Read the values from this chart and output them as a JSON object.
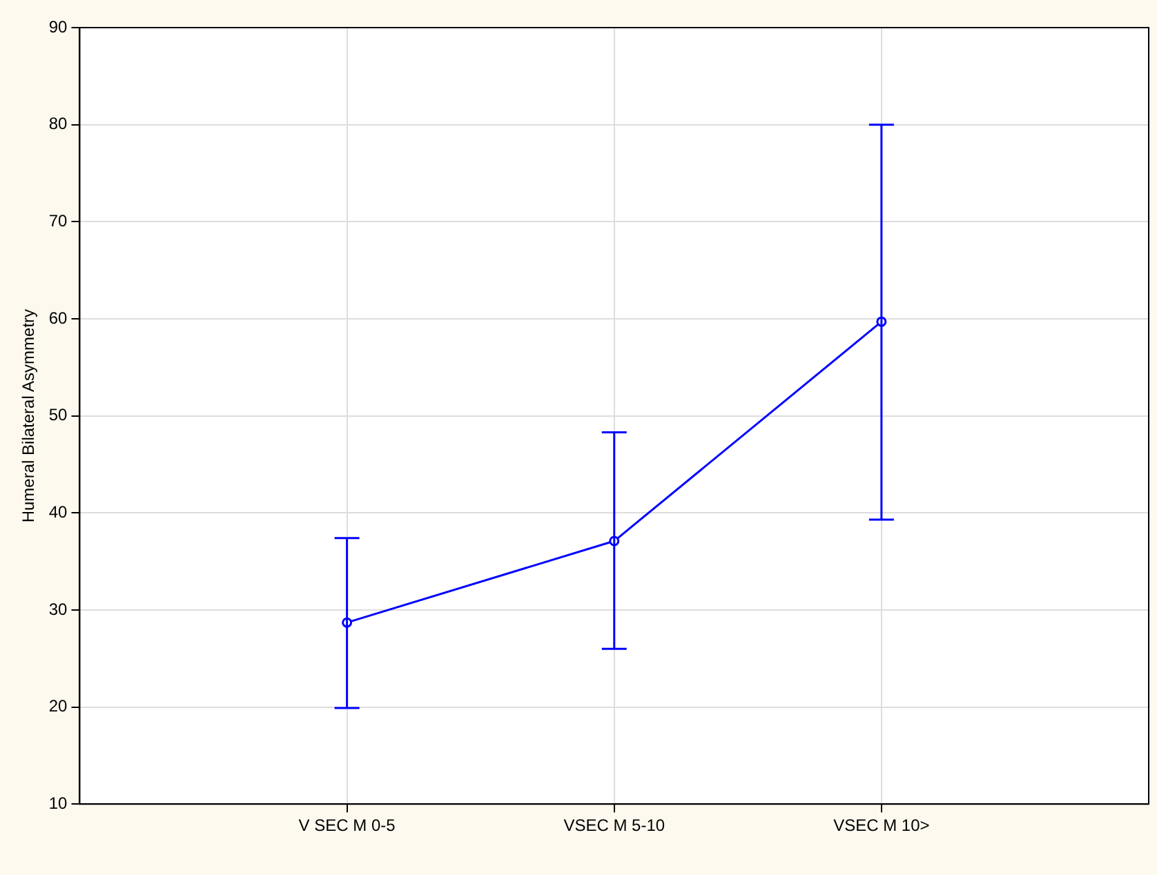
{
  "chart_data": {
    "type": "line",
    "ylabel": "Humeral Bilateral Asymmetry",
    "categories": [
      "V SEC M 0-5",
      "VSEC M 5-10",
      "VSEC M 10>"
    ],
    "series": [
      {
        "color": "#0000ff",
        "values": [
          28.7,
          37.1,
          59.7
        ],
        "errors": [
          [
            19.9,
            37.4
          ],
          [
            26,
            48.3
          ],
          [
            39.3,
            80
          ]
        ]
      }
    ],
    "ylim": [
      10,
      90
    ],
    "yticks": [
      10,
      20,
      30,
      40,
      50,
      60,
      70,
      80,
      90
    ],
    "grid": true,
    "marker": "circle",
    "legend": false
  }
}
